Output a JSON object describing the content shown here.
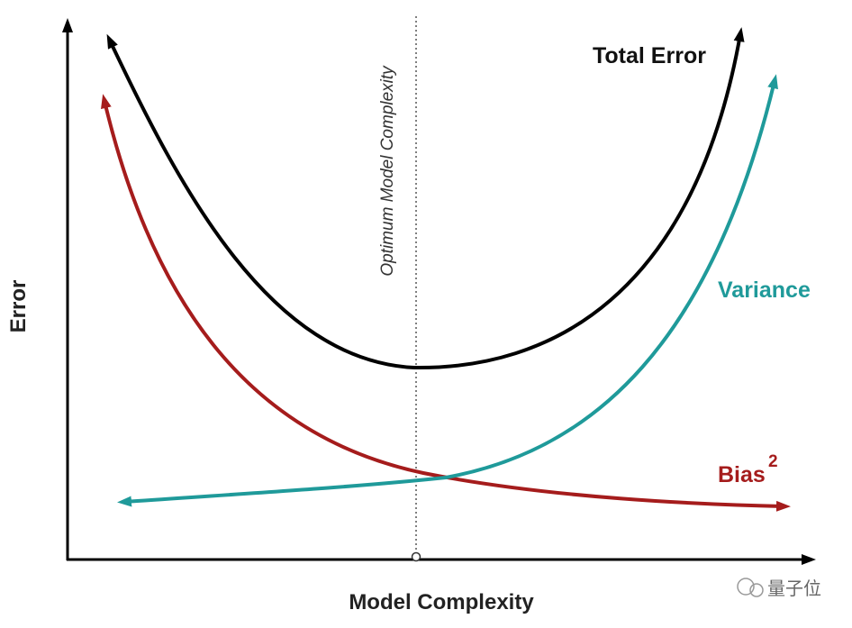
{
  "diagram": {
    "y_axis_label": "Error",
    "x_axis_label": "Model Complexity",
    "optimum_label": "Optimum Model Complexity",
    "curves": {
      "total_error": "Total Error",
      "variance": "Variance",
      "bias": {
        "text": "Bias",
        "superscript": "2"
      }
    },
    "watermark": "量子位"
  }
}
